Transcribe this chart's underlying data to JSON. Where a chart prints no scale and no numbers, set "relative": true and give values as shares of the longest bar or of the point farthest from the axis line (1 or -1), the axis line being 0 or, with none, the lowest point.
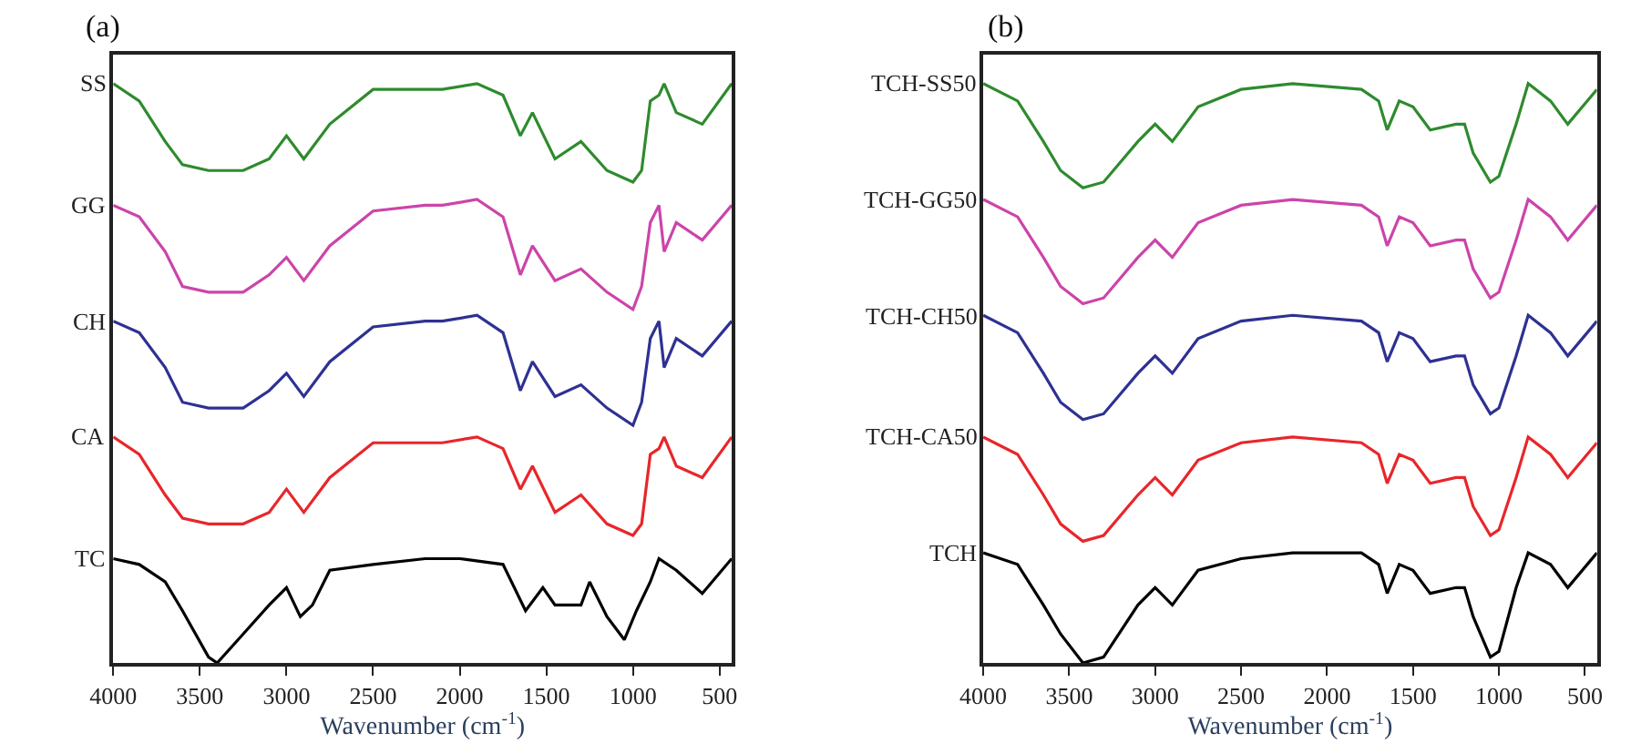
{
  "chart_data": [
    {
      "type": "line",
      "title": "(a)",
      "xlabel": "Wavenumber (cm$^{-1}$)",
      "relative": true,
      "xlim": [
        4000,
        430
      ],
      "xticks": [
        4000,
        3500,
        3000,
        2500,
        2000,
        1500,
        1000,
        500
      ],
      "line_style": "solid",
      "marker": "none",
      "series": [
        {
          "name": "SS",
          "color": "#2e8b2e",
          "x": [
            4000,
            3850,
            3700,
            3600,
            3450,
            3250,
            3100,
            3000,
            2900,
            2750,
            2500,
            2200,
            2100,
            1900,
            1750,
            1650,
            1580,
            1450,
            1300,
            1150,
            1000,
            950,
            900,
            850,
            820,
            750,
            600,
            430
          ],
          "values": [
            1.0,
            0.97,
            0.9,
            0.86,
            0.85,
            0.85,
            0.87,
            0.91,
            0.87,
            0.93,
            0.99,
            0.99,
            0.99,
            1.0,
            0.98,
            0.91,
            0.95,
            0.87,
            0.9,
            0.85,
            0.83,
            0.85,
            0.97,
            0.98,
            1.0,
            0.95,
            0.93,
            1.0
          ]
        },
        {
          "name": "GG",
          "color": "#cc44aa",
          "x": [
            4000,
            3850,
            3700,
            3600,
            3450,
            3250,
            3100,
            3000,
            2900,
            2750,
            2500,
            2200,
            2100,
            1900,
            1750,
            1650,
            1580,
            1450,
            1300,
            1150,
            1000,
            950,
            900,
            850,
            820,
            750,
            600,
            430
          ],
          "values": [
            0.79,
            0.77,
            0.71,
            0.65,
            0.64,
            0.64,
            0.67,
            0.7,
            0.66,
            0.72,
            0.78,
            0.79,
            0.79,
            0.8,
            0.77,
            0.67,
            0.72,
            0.66,
            0.68,
            0.64,
            0.61,
            0.65,
            0.76,
            0.79,
            0.71,
            0.76,
            0.73,
            0.79
          ]
        },
        {
          "name": "CH",
          "color": "#2e3192",
          "x": [
            4000,
            3850,
            3700,
            3600,
            3450,
            3250,
            3100,
            3000,
            2900,
            2750,
            2500,
            2200,
            2100,
            1900,
            1750,
            1650,
            1580,
            1450,
            1300,
            1150,
            1000,
            950,
            900,
            850,
            820,
            750,
            600,
            430
          ],
          "values": [
            0.59,
            0.57,
            0.51,
            0.45,
            0.44,
            0.44,
            0.47,
            0.5,
            0.46,
            0.52,
            0.58,
            0.59,
            0.59,
            0.6,
            0.57,
            0.47,
            0.52,
            0.46,
            0.48,
            0.44,
            0.41,
            0.45,
            0.56,
            0.59,
            0.51,
            0.56,
            0.53,
            0.59
          ]
        },
        {
          "name": "CA",
          "color": "#e8262a",
          "x": [
            4000,
            3850,
            3700,
            3600,
            3450,
            3250,
            3100,
            3000,
            2900,
            2750,
            2500,
            2200,
            2100,
            1900,
            1750,
            1650,
            1580,
            1450,
            1300,
            1150,
            1000,
            950,
            900,
            850,
            820,
            750,
            600,
            430
          ],
          "values": [
            0.39,
            0.36,
            0.29,
            0.25,
            0.24,
            0.24,
            0.26,
            0.3,
            0.26,
            0.32,
            0.38,
            0.38,
            0.38,
            0.39,
            0.37,
            0.3,
            0.34,
            0.26,
            0.29,
            0.24,
            0.22,
            0.24,
            0.36,
            0.37,
            0.39,
            0.34,
            0.32,
            0.39
          ]
        },
        {
          "name": "TC",
          "color": "#000000",
          "x": [
            4000,
            3850,
            3700,
            3600,
            3450,
            3400,
            3250,
            3100,
            3000,
            2920,
            2850,
            2750,
            2500,
            2200,
            2000,
            1750,
            1620,
            1520,
            1450,
            1300,
            1250,
            1150,
            1050,
            980,
            900,
            850,
            750,
            600,
            430
          ],
          "values": [
            0.18,
            0.17,
            0.14,
            0.09,
            0.01,
            0.0,
            0.05,
            0.1,
            0.13,
            0.08,
            0.1,
            0.16,
            0.17,
            0.18,
            0.18,
            0.17,
            0.09,
            0.13,
            0.1,
            0.1,
            0.14,
            0.08,
            0.04,
            0.09,
            0.14,
            0.18,
            0.16,
            0.12,
            0.18
          ]
        }
      ]
    },
    {
      "type": "line",
      "title": "(b)",
      "xlabel": "Wavenumber (cm$^{-1}$)",
      "relative": true,
      "xlim": [
        4000,
        430
      ],
      "xticks": [
        4000,
        3500,
        3000,
        2500,
        2000,
        1500,
        1000,
        500
      ],
      "line_style": "solid",
      "marker": "none",
      "series": [
        {
          "name": "TCH-SS50",
          "color": "#2e8b2e",
          "x": [
            4000,
            3800,
            3650,
            3550,
            3420,
            3300,
            3100,
            3000,
            2900,
            2750,
            2500,
            2200,
            1800,
            1700,
            1650,
            1580,
            1500,
            1400,
            1250,
            1200,
            1150,
            1050,
            1000,
            900,
            830,
            700,
            600,
            430
          ],
          "values": [
            1.0,
            0.97,
            0.9,
            0.85,
            0.82,
            0.83,
            0.9,
            0.93,
            0.9,
            0.96,
            0.99,
            1.0,
            0.99,
            0.97,
            0.92,
            0.97,
            0.96,
            0.92,
            0.93,
            0.93,
            0.88,
            0.83,
            0.84,
            0.93,
            1.0,
            0.97,
            0.93,
            0.99
          ]
        },
        {
          "name": "TCH-GG50",
          "color": "#cc44aa",
          "x": [
            4000,
            3800,
            3650,
            3550,
            3420,
            3300,
            3100,
            3000,
            2900,
            2750,
            2500,
            2200,
            1800,
            1700,
            1650,
            1580,
            1500,
            1400,
            1250,
            1200,
            1150,
            1050,
            1000,
            900,
            830,
            700,
            600,
            430
          ],
          "values": [
            0.8,
            0.77,
            0.7,
            0.65,
            0.62,
            0.63,
            0.7,
            0.73,
            0.7,
            0.76,
            0.79,
            0.8,
            0.79,
            0.77,
            0.72,
            0.77,
            0.76,
            0.72,
            0.73,
            0.73,
            0.68,
            0.63,
            0.64,
            0.73,
            0.8,
            0.77,
            0.73,
            0.79
          ]
        },
        {
          "name": "TCH-CH50",
          "color": "#2e3192",
          "x": [
            4000,
            3800,
            3650,
            3550,
            3420,
            3300,
            3100,
            3000,
            2900,
            2750,
            2500,
            2200,
            1800,
            1700,
            1650,
            1580,
            1500,
            1400,
            1250,
            1200,
            1150,
            1050,
            1000,
            900,
            830,
            700,
            600,
            430
          ],
          "values": [
            0.6,
            0.57,
            0.5,
            0.45,
            0.42,
            0.43,
            0.5,
            0.53,
            0.5,
            0.56,
            0.59,
            0.6,
            0.59,
            0.57,
            0.52,
            0.57,
            0.56,
            0.52,
            0.53,
            0.53,
            0.48,
            0.43,
            0.44,
            0.53,
            0.6,
            0.57,
            0.53,
            0.59
          ]
        },
        {
          "name": "TCH-CA50",
          "color": "#e8262a",
          "x": [
            4000,
            3800,
            3650,
            3550,
            3420,
            3300,
            3100,
            3000,
            2900,
            2750,
            2500,
            2200,
            1800,
            1700,
            1650,
            1580,
            1500,
            1400,
            1250,
            1200,
            1150,
            1050,
            1000,
            900,
            830,
            700,
            600,
            430
          ],
          "values": [
            0.39,
            0.36,
            0.29,
            0.24,
            0.21,
            0.22,
            0.29,
            0.32,
            0.29,
            0.35,
            0.38,
            0.39,
            0.38,
            0.36,
            0.31,
            0.36,
            0.35,
            0.31,
            0.32,
            0.32,
            0.27,
            0.22,
            0.23,
            0.32,
            0.39,
            0.36,
            0.32,
            0.38
          ]
        },
        {
          "name": "TCH",
          "color": "#000000",
          "x": [
            4000,
            3800,
            3650,
            3550,
            3420,
            3300,
            3100,
            3000,
            2900,
            2750,
            2500,
            2200,
            1800,
            1700,
            1650,
            1580,
            1500,
            1400,
            1250,
            1200,
            1150,
            1050,
            1000,
            900,
            830,
            700,
            600,
            430
          ],
          "values": [
            0.19,
            0.17,
            0.1,
            0.05,
            0.0,
            0.01,
            0.1,
            0.13,
            0.1,
            0.16,
            0.18,
            0.19,
            0.19,
            0.17,
            0.12,
            0.17,
            0.16,
            0.12,
            0.13,
            0.13,
            0.08,
            0.01,
            0.02,
            0.13,
            0.19,
            0.17,
            0.13,
            0.19
          ]
        }
      ]
    }
  ]
}
